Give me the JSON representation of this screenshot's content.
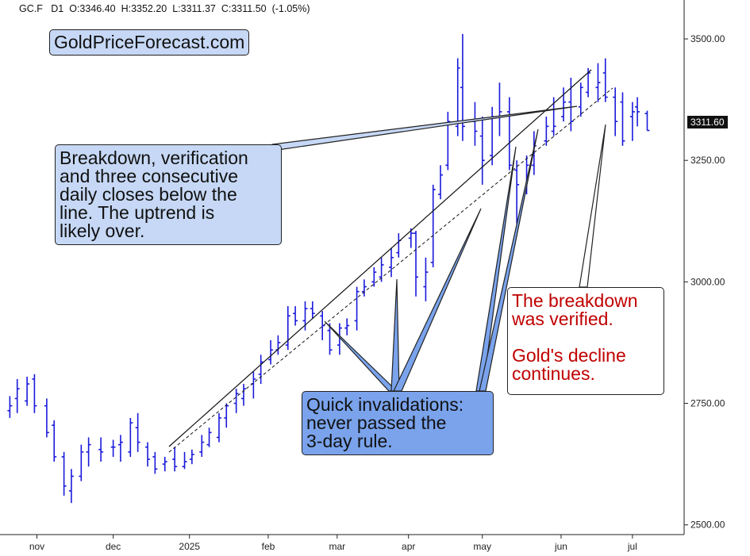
{
  "header": {
    "symbol": "GC.F",
    "timeframe": "D1",
    "open": "O:3346.40",
    "high": "H:3352.20",
    "low": "L:3311.37",
    "close": "C:3311.50",
    "change": "(-1.05%)"
  },
  "brand": "GoldPriceForecast.com",
  "price_tag": "3311.60",
  "callouts": {
    "breakdown": [
      "Breakdown, verification",
      "and three consecutive",
      "daily closes below the",
      "line. The uptrend is",
      "likely over."
    ],
    "quick": [
      "Quick invalidations:",
      "never passed the",
      "3-day rule."
    ],
    "verified": [
      "The breakdown",
      "was verified.",
      "",
      "Gold's decline",
      "continues."
    ]
  },
  "colors": {
    "bar_blue": "#1a1adc",
    "verified_text": "#c00000",
    "callout_light": "#c6d8f5",
    "callout_dark": "#7aa3ec"
  },
  "chart_data": {
    "type": "ohlc",
    "title": "",
    "symbol": "GC.F",
    "ylim": [
      2480,
      3580
    ],
    "y_ticks": [
      2500,
      2750,
      3000,
      3250,
      3500
    ],
    "y_tick_labels": [
      "2500.00",
      "2750.00",
      "3000.00",
      "3250.00",
      "3500.00"
    ],
    "x_tick_labels": [
      "nov",
      "dec",
      "2025",
      "feb",
      "mar",
      "apr",
      "may",
      "jun",
      "jul"
    ],
    "x_tick_dates": [
      "2024-11-01",
      "2024-12-02",
      "2025-01-02",
      "2025-02-03",
      "2025-03-03",
      "2025-04-01",
      "2025-05-01",
      "2025-06-02",
      "2025-07-01"
    ],
    "last_price": 3311.6,
    "series": {
      "dates": [
        "2024-10-21",
        "2024-10-24",
        "2024-10-28",
        "2024-10-31",
        "2024-11-05",
        "2024-11-08",
        "2024-11-12",
        "2024-11-15",
        "2024-11-19",
        "2024-11-22",
        "2024-11-27",
        "2024-12-02",
        "2024-12-05",
        "2024-12-09",
        "2024-12-12",
        "2024-12-16",
        "2024-12-19",
        "2024-12-23",
        "2024-12-27",
        "2024-12-31",
        "2025-01-03",
        "2025-01-07",
        "2025-01-10",
        "2025-01-14",
        "2025-01-17",
        "2025-01-21",
        "2025-01-24",
        "2025-01-28",
        "2025-01-31",
        "2025-02-04",
        "2025-02-07",
        "2025-02-11",
        "2025-02-14",
        "2025-02-18",
        "2025-02-21",
        "2025-02-25",
        "2025-02-28",
        "2025-03-04",
        "2025-03-07",
        "2025-03-11",
        "2025-03-14",
        "2025-03-18",
        "2025-03-21",
        "2025-03-25",
        "2025-03-28",
        "2025-04-02",
        "2025-04-04",
        "2025-04-08",
        "2025-04-11",
        "2025-04-14",
        "2025-04-17",
        "2025-04-21",
        "2025-04-23",
        "2025-04-28",
        "2025-05-01",
        "2025-05-05",
        "2025-05-08",
        "2025-05-12",
        "2025-05-15",
        "2025-05-19",
        "2025-05-22",
        "2025-05-27",
        "2025-05-30",
        "2025-06-03",
        "2025-06-06",
        "2025-06-10",
        "2025-06-13",
        "2025-06-17",
        "2025-06-20",
        "2025-06-24",
        "2025-06-27",
        "2025-07-01",
        "2025-07-03",
        "2025-07-07"
      ],
      "open": [
        2735,
        2760,
        2755,
        2800,
        2745,
        2705,
        2640,
        2570,
        2600,
        2650,
        2655,
        2660,
        2665,
        2650,
        2700,
        2660,
        2640,
        2625,
        2635,
        2620,
        2635,
        2650,
        2665,
        2680,
        2720,
        2750,
        2760,
        2790,
        2810,
        2840,
        2860,
        2870,
        2935,
        2920,
        2945,
        2930,
        2900,
        2870,
        2905,
        2920,
        2980,
        3000,
        3010,
        3030,
        3060,
        3090,
        3100,
        2990,
        3040,
        3180,
        3240,
        3320,
        3400,
        3330,
        3300,
        3260,
        3340,
        3350,
        3230,
        3190,
        3240,
        3290,
        3310,
        3340,
        3370,
        3360,
        3390,
        3400,
        3430,
        3380,
        3370,
        3340,
        3360,
        3346.4
      ],
      "high": [
        2765,
        2800,
        2805,
        2810,
        2760,
        2715,
        2650,
        2615,
        2665,
        2680,
        2680,
        2675,
        2685,
        2720,
        2730,
        2670,
        2650,
        2640,
        2660,
        2650,
        2655,
        2685,
        2700,
        2730,
        2750,
        2780,
        2790,
        2815,
        2850,
        2880,
        2890,
        2950,
        2950,
        2960,
        2960,
        2940,
        2915,
        2915,
        2925,
        2990,
        3005,
        3030,
        3050,
        3070,
        3100,
        3110,
        3105,
        3050,
        3200,
        3240,
        3350,
        3460,
        3510,
        3370,
        3340,
        3360,
        3410,
        3380,
        3250,
        3260,
        3310,
        3340,
        3380,
        3400,
        3420,
        3410,
        3440,
        3450,
        3460,
        3400,
        3390,
        3370,
        3380,
        3352.2
      ],
      "low": [
        2720,
        2730,
        2745,
        2730,
        2680,
        2630,
        2560,
        2545,
        2590,
        2620,
        2630,
        2640,
        2630,
        2640,
        2650,
        2620,
        2605,
        2610,
        2610,
        2615,
        2625,
        2640,
        2660,
        2670,
        2700,
        2730,
        2745,
        2760,
        2790,
        2830,
        2850,
        2860,
        2910,
        2900,
        2925,
        2880,
        2850,
        2850,
        2890,
        2900,
        2970,
        2990,
        3000,
        3010,
        3050,
        3070,
        2970,
        2960,
        3030,
        3170,
        3230,
        3300,
        3290,
        3280,
        3200,
        3240,
        3300,
        3230,
        3120,
        3180,
        3220,
        3280,
        3300,
        3330,
        3310,
        3340,
        3380,
        3370,
        3370,
        3300,
        3280,
        3290,
        3320,
        3311.37
      ],
      "close": [
        2745,
        2780,
        2790,
        2745,
        2690,
        2640,
        2580,
        2600,
        2650,
        2665,
        2650,
        2660,
        2670,
        2710,
        2670,
        2635,
        2615,
        2630,
        2620,
        2630,
        2645,
        2670,
        2690,
        2720,
        2745,
        2770,
        2780,
        2800,
        2835,
        2860,
        2875,
        2930,
        2920,
        2945,
        2935,
        2910,
        2860,
        2905,
        2910,
        2980,
        2990,
        3020,
        3035,
        3050,
        3085,
        3100,
        3010,
        3020,
        3190,
        3220,
        3330,
        3440,
        3320,
        3310,
        3250,
        3340,
        3350,
        3240,
        3200,
        3240,
        3280,
        3320,
        3320,
        3370,
        3330,
        3400,
        3430,
        3410,
        3380,
        3330,
        3290,
        3350,
        3350,
        3311.5
      ]
    }
  }
}
